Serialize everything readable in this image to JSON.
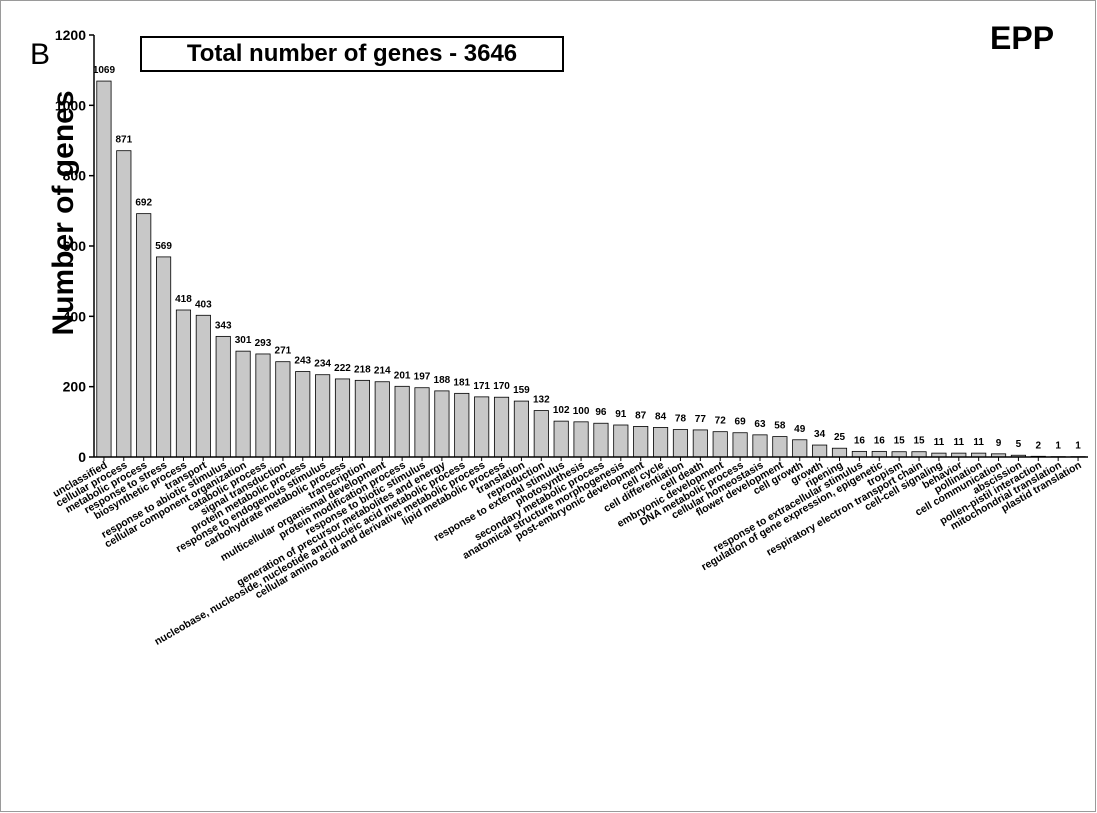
{
  "panel_label": "B",
  "series_tag": "EPP",
  "colors": {
    "bar_fill": "#c8c8c8",
    "bar_stroke": "#000000",
    "axis": "#000000"
  },
  "chart_data": {
    "type": "bar",
    "title": "Total number of genes - 3646",
    "xlabel": "",
    "ylabel": "Number of genes",
    "ylim": [
      0,
      1200
    ],
    "yticks": [
      0,
      200,
      400,
      600,
      800,
      1000,
      1200
    ],
    "grid": false,
    "categories": [
      "unclassified",
      "cellular process",
      "metabolic process",
      "response to stress",
      "biosynthetic process",
      "transport",
      "response to abiotic stimulus",
      "cellular component organization",
      "catabolic process",
      "signal transduction",
      "protein metabolic process",
      "response to endogenous stimulus",
      "carbohydrate metabolic process",
      "transcription",
      "multicellular organismal development",
      "protein modification process",
      "response to biotic stimulus",
      "generation of precursor metabolites and energy",
      "nucleobase, nucleoside, nucleotide and nucleic acid metabolic process",
      "cellular amino acid and derivative metabolic process",
      "lipid metabolic process",
      "translation",
      "reproduction",
      "response to external stimulus",
      "photosynthesis",
      "secondary metabolic process",
      "anatomical structure morphogenesis",
      "post-embryonic development",
      "cell cycle",
      "cell differentiation",
      "cell death",
      "embryonic development",
      "DNA metabolic process",
      "cellular homeostasis",
      "flower development",
      "cell growth",
      "growth",
      "ripening",
      "response to extracellular stimulus",
      "regulation of gene expression, epigenetic",
      "tropism",
      "respiratory electron transport chain",
      "cell-cell signaling",
      "behavior",
      "pollination",
      "cell communication",
      "abscission",
      "pollen-pistil interaction",
      "mitochondrial translation",
      "plastid translation"
    ],
    "values": [
      1069,
      871,
      692,
      569,
      418,
      403,
      343,
      301,
      293,
      271,
      243,
      234,
      222,
      218,
      214,
      201,
      197,
      188,
      181,
      171,
      170,
      159,
      132,
      102,
      100,
      96,
      91,
      87,
      84,
      78,
      77,
      72,
      69,
      63,
      58,
      49,
      34,
      25,
      16,
      16,
      15,
      15,
      11,
      11,
      11,
      9,
      5,
      2,
      1,
      1
    ],
    "data_labels": [
      "1069",
      "871",
      "692",
      "569",
      "418",
      "403",
      "343",
      "301",
      "293",
      "271",
      "243",
      "234",
      "222",
      "218",
      "214",
      "201",
      "197",
      "188",
      "181",
      "171",
      "170",
      "159",
      "132",
      "102",
      "100",
      "96",
      "91",
      "87",
      "84",
      "78",
      "77",
      "72",
      "69",
      "63",
      "58",
      "49",
      "34",
      "25",
      "16",
      "16",
      "15",
      "15",
      "11",
      "11",
      "11",
      "9",
      "5",
      "2",
      "1",
      "1"
    ]
  }
}
